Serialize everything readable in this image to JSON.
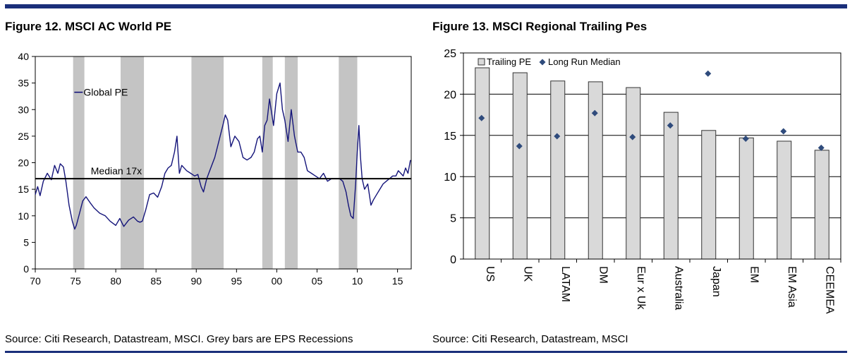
{
  "figure12": {
    "title": "Figure 12. MSCI AC World PE",
    "source": "Source: Citi Research, Datastream, MSCI. Grey bars are EPS Recessions",
    "chart_data": {
      "type": "line",
      "title": "Figure 12. MSCI AC World PE",
      "xlabel": "",
      "ylabel": "",
      "xlim": [
        1970,
        2016.7
      ],
      "ylim": [
        0,
        40
      ],
      "yticks": [
        0,
        5,
        10,
        15,
        20,
        25,
        30,
        35,
        40
      ],
      "xtick_labels": [
        {
          "year": 1970,
          "label": "70"
        },
        {
          "year": 1975,
          "label": "75"
        },
        {
          "year": 1980,
          "label": "80"
        },
        {
          "year": 1985,
          "label": "85"
        },
        {
          "year": 1990,
          "label": "90"
        },
        {
          "year": 1995,
          "label": "95"
        },
        {
          "year": 2000,
          "label": "00"
        },
        {
          "year": 2005,
          "label": "05"
        },
        {
          "year": 2010,
          "label": "10"
        },
        {
          "year": 2015,
          "label": "15"
        }
      ],
      "recessions": [
        [
          1974.7,
          1976.1
        ],
        [
          1980.6,
          1983.5
        ],
        [
          1989.4,
          1993.4
        ],
        [
          1998.2,
          1999.5
        ],
        [
          2001.0,
          2002.6
        ],
        [
          2007.7,
          2010.0
        ]
      ],
      "median": {
        "value": 17,
        "label": "Median 17x"
      },
      "legend": "Global PE",
      "series": [
        {
          "name": "Global PE",
          "color": "#14147a",
          "x": [
            1970.0,
            1970.3,
            1970.6,
            1971.0,
            1971.5,
            1972.0,
            1972.4,
            1972.8,
            1973.1,
            1973.5,
            1973.8,
            1974.2,
            1974.6,
            1974.9,
            1975.1,
            1975.5,
            1975.9,
            1976.3,
            1976.8,
            1977.3,
            1978.0,
            1978.7,
            1979.3,
            1980.0,
            1980.5,
            1981.0,
            1981.6,
            1982.2,
            1982.7,
            1983.0,
            1983.3,
            1983.7,
            1984.2,
            1984.7,
            1985.2,
            1985.7,
            1986.1,
            1986.5,
            1986.9,
            1987.3,
            1987.6,
            1987.9,
            1988.2,
            1988.8,
            1989.3,
            1989.8,
            1990.2,
            1990.6,
            1990.9,
            1991.3,
            1991.8,
            1992.3,
            1992.8,
            1993.3,
            1993.6,
            1993.9,
            1994.3,
            1994.8,
            1995.3,
            1995.8,
            1996.3,
            1996.8,
            1997.2,
            1997.6,
            1997.9,
            1998.2,
            1998.5,
            1998.8,
            1999.1,
            1999.3,
            1999.6,
            2000.0,
            2000.4,
            2000.7,
            2001.0,
            2001.4,
            2001.8,
            2002.2,
            2002.6,
            2003.0,
            2003.4,
            2003.8,
            2004.3,
            2004.8,
            2005.3,
            2005.8,
            2006.3,
            2006.8,
            2007.3,
            2007.8,
            2008.2,
            2008.6,
            2008.9,
            2009.2,
            2009.5,
            2009.8,
            2010.0,
            2010.2,
            2010.4,
            2010.6,
            2010.9,
            2011.3,
            2011.7,
            2012.0,
            2012.4,
            2012.8,
            2013.2,
            2013.6,
            2014.0,
            2014.4,
            2014.8,
            2015.1,
            2015.4,
            2015.7,
            2016.0,
            2016.3,
            2016.6
          ],
          "y": [
            14.0,
            15.5,
            13.8,
            16.5,
            18.0,
            16.8,
            19.5,
            18.0,
            19.8,
            19.2,
            16.5,
            12.0,
            9.0,
            7.5,
            8.2,
            10.5,
            12.8,
            13.6,
            12.5,
            11.5,
            10.5,
            10.0,
            9.0,
            8.2,
            9.5,
            8.0,
            9.2,
            9.8,
            9.0,
            8.8,
            9.0,
            11.0,
            14.0,
            14.3,
            13.5,
            15.5,
            18.0,
            19.0,
            19.5,
            22.0,
            25.0,
            18.0,
            19.5,
            18.5,
            18.0,
            17.5,
            17.8,
            15.5,
            14.5,
            17.0,
            19.0,
            21.0,
            24.0,
            27.0,
            29.0,
            28.0,
            23.0,
            25.0,
            24.0,
            21.0,
            20.5,
            21.0,
            22.0,
            24.5,
            25.0,
            22.0,
            27.0,
            28.0,
            32.0,
            30.0,
            27.0,
            33.0,
            35.0,
            30.0,
            28.0,
            24.0,
            30.0,
            25.0,
            22.0,
            22.0,
            21.0,
            18.5,
            18.0,
            17.5,
            17.0,
            18.0,
            16.5,
            17.0,
            17.0,
            17.0,
            16.5,
            14.5,
            12.0,
            10.0,
            9.5,
            16.0,
            22.0,
            27.0,
            21.0,
            17.0,
            15.0,
            16.0,
            12.0,
            13.0,
            14.0,
            15.0,
            16.0,
            16.5,
            17.0,
            17.5,
            17.5,
            18.5,
            18.0,
            17.5,
            19.0,
            18.0,
            20.5
          ]
        }
      ]
    }
  },
  "figure13": {
    "title": "Figure 13. MSCI Regional Trailing Pes",
    "source": "Source: Citi Research, Datastream, MSCI",
    "chart_data": {
      "type": "bar",
      "title": "Figure 13. MSCI Regional Trailing Pes",
      "xlabel": "",
      "ylabel": "",
      "ylim": [
        0,
        25
      ],
      "yticks": [
        0,
        5,
        10,
        15,
        20,
        25
      ],
      "categories": [
        "US",
        "UK",
        "LATAM",
        "DM",
        "Eur x Uk",
        "Australia",
        "Japan",
        "EM",
        "EM Asia",
        "CEEMEA"
      ],
      "series": [
        {
          "name": "Trailing PE",
          "values": [
            23.2,
            22.6,
            21.6,
            21.5,
            20.8,
            17.8,
            15.6,
            14.7,
            14.3,
            13.2
          ],
          "color": "#d9d9d9"
        },
        {
          "name": "Long Run Median",
          "values": [
            17.1,
            13.7,
            14.9,
            17.7,
            14.8,
            16.2,
            22.5,
            14.6,
            15.5,
            13.5
          ],
          "color": "#2f4b7c"
        }
      ]
    }
  }
}
